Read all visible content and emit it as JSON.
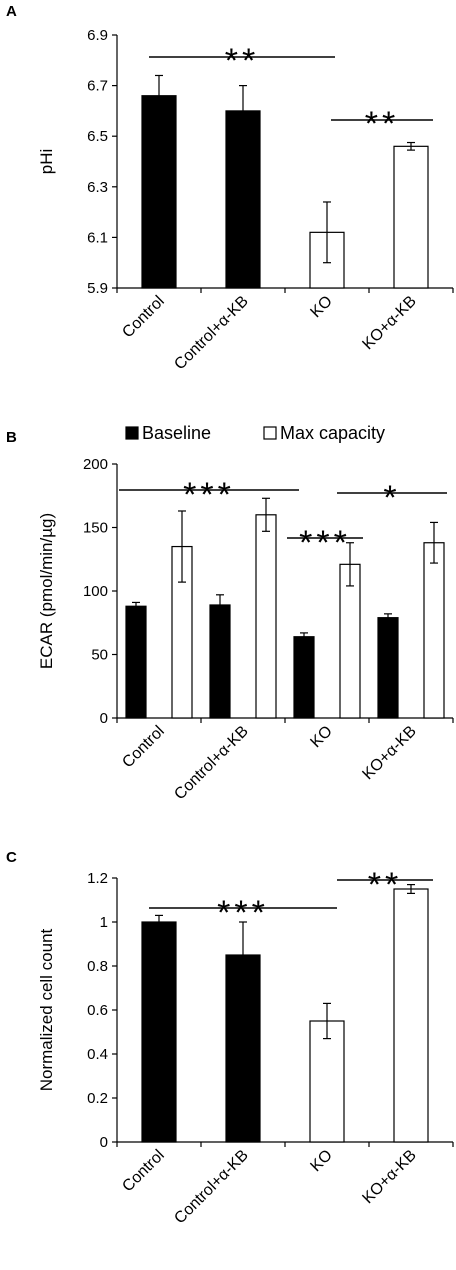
{
  "chart_data": [
    {
      "panel": "A",
      "type": "bar",
      "categories": [
        "Control",
        "Control+α-KB",
        "KO",
        "KO+α-KB"
      ],
      "values": [
        6.66,
        6.6,
        6.12,
        6.46
      ],
      "errors": [
        0.08,
        0.1,
        0.12,
        0.015
      ],
      "bar_colors": [
        "#000000",
        "#000000",
        "#ffffff",
        "#ffffff"
      ],
      "ylabel": "pHi",
      "ylim": [
        5.9,
        6.9
      ],
      "yticks": [
        "5.9",
        "6.1",
        "6.3",
        "6.5",
        "6.7",
        "6.9"
      ],
      "grid": false,
      "significance": [
        {
          "from": 0,
          "to": 2,
          "label": "**"
        },
        {
          "from": 2,
          "to": 3,
          "label": "**"
        }
      ]
    },
    {
      "panel": "B",
      "type": "bar",
      "categories": [
        "Control",
        "Control+α-KB",
        "KO",
        "KO+α-KB"
      ],
      "series": [
        {
          "name": "Baseline",
          "values": [
            88,
            89,
            64,
            79
          ],
          "errors": [
            3,
            8,
            3,
            3
          ],
          "color": "#000000"
        },
        {
          "name": "Max capacity",
          "values": [
            135,
            160,
            121,
            138
          ],
          "errors": [
            28,
            13,
            17,
            16
          ],
          "color": "#ffffff"
        }
      ],
      "ylabel": "ECAR (pmol/min/µg)",
      "ylim": [
        0,
        200
      ],
      "yticks": [
        "0",
        "50",
        "100",
        "150",
        "200"
      ],
      "legend_position": "top",
      "grid": false,
      "significance": [
        {
          "from": 0,
          "to": 2,
          "label": "***"
        },
        {
          "from": 2,
          "to": 2.5,
          "label": "***"
        },
        {
          "from": 2.5,
          "to": 3.5,
          "label": "*"
        }
      ]
    },
    {
      "panel": "C",
      "type": "bar",
      "categories": [
        "Control",
        "Control+α-KB",
        "KO",
        "KO+α-KB"
      ],
      "values": [
        1.0,
        0.85,
        0.55,
        1.15
      ],
      "errors": [
        0.03,
        0.15,
        0.08,
        0.02
      ],
      "bar_colors": [
        "#000000",
        "#000000",
        "#ffffff",
        "#ffffff"
      ],
      "ylabel": "Normalized cell count",
      "ylim": [
        0,
        1.2
      ],
      "yticks": [
        "0",
        "0.2",
        "0.4",
        "0.6",
        "0.8",
        "1",
        "1.2"
      ],
      "grid": false,
      "significance": [
        {
          "from": 0,
          "to": 2,
          "label": "***"
        },
        {
          "from": 2,
          "to": 3,
          "label": "**"
        }
      ]
    }
  ]
}
